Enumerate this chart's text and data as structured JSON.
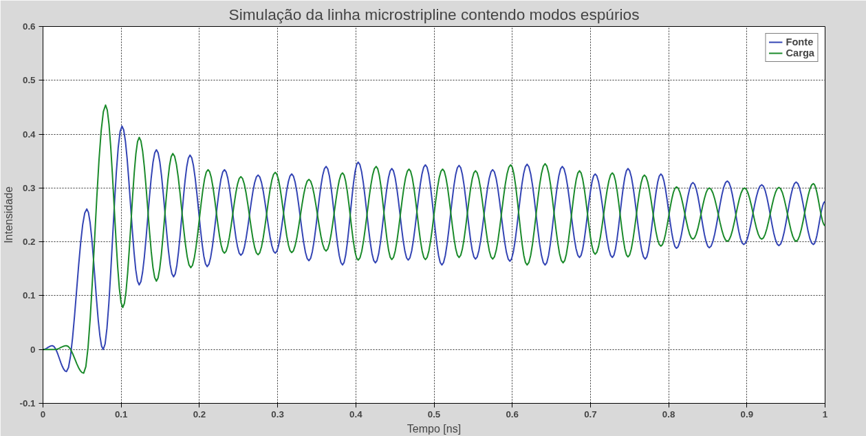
{
  "chart_data": {
    "type": "line",
    "title": "Simulação da linha microstripline contendo modos espúrios",
    "xlabel": "Tempo [ns]",
    "ylabel": "Intensidade",
    "xlim": [
      0,
      1
    ],
    "ylim": [
      -0.1,
      0.6
    ],
    "xticks": [
      0,
      0.1,
      0.2,
      0.3,
      0.4,
      0.5,
      0.6,
      0.7,
      0.8,
      0.9,
      1
    ],
    "yticks": [
      -0.1,
      0,
      0.1,
      0.2,
      0.3,
      0.4,
      0.5,
      0.6
    ],
    "grid": true,
    "legend": "top right",
    "line_style": "solid",
    "series": [
      {
        "name": "Fonte",
        "color": "#3344b4",
        "x": [
          0,
          0.012,
          0.03,
          0.056,
          0.077,
          0.101,
          0.123,
          0.145,
          0.167,
          0.188,
          0.21,
          0.232,
          0.253,
          0.275,
          0.297,
          0.318,
          0.34,
          0.362,
          0.383,
          0.403,
          0.425,
          0.446,
          0.467,
          0.489,
          0.51,
          0.532,
          0.553,
          0.575,
          0.597,
          0.619,
          0.642,
          0.664,
          0.686,
          0.706,
          0.728,
          0.748,
          0.77,
          0.79,
          0.81,
          0.831,
          0.852,
          0.875,
          0.896,
          0.919,
          0.941,
          0.963,
          0.985,
          1
        ],
        "values": [
          0,
          0.007,
          -0.041,
          0.261,
          0.0,
          0.415,
          0.12,
          0.371,
          0.135,
          0.361,
          0.154,
          0.334,
          0.175,
          0.324,
          0.179,
          0.326,
          0.165,
          0.34,
          0.157,
          0.348,
          0.161,
          0.336,
          0.166,
          0.343,
          0.157,
          0.342,
          0.168,
          0.334,
          0.164,
          0.344,
          0.157,
          0.34,
          0.171,
          0.326,
          0.171,
          0.336,
          0.168,
          0.326,
          0.188,
          0.31,
          0.189,
          0.313,
          0.195,
          0.306,
          0.193,
          0.311,
          0.195,
          0.275
        ]
      },
      {
        "name": "Carga",
        "color": "#1a8a2a",
        "x": [
          0,
          0.015,
          0.03,
          0.052,
          0.08,
          0.102,
          0.123,
          0.145,
          0.166,
          0.189,
          0.211,
          0.232,
          0.253,
          0.275,
          0.297,
          0.318,
          0.34,
          0.362,
          0.383,
          0.403,
          0.426,
          0.446,
          0.468,
          0.489,
          0.511,
          0.532,
          0.553,
          0.575,
          0.598,
          0.619,
          0.642,
          0.665,
          0.686,
          0.706,
          0.728,
          0.748,
          0.769,
          0.79,
          0.81,
          0.831,
          0.852,
          0.875,
          0.897,
          0.919,
          0.941,
          0.963,
          0.985,
          1
        ],
        "values": [
          0,
          0,
          0.007,
          -0.044,
          0.454,
          0.078,
          0.394,
          0.127,
          0.364,
          0.152,
          0.334,
          0.179,
          0.321,
          0.176,
          0.329,
          0.18,
          0.316,
          0.183,
          0.328,
          0.166,
          0.34,
          0.167,
          0.335,
          0.167,
          0.335,
          0.171,
          0.332,
          0.168,
          0.343,
          0.157,
          0.345,
          0.161,
          0.332,
          0.177,
          0.328,
          0.172,
          0.324,
          0.192,
          0.302,
          0.205,
          0.3,
          0.201,
          0.3,
          0.205,
          0.301,
          0.201,
          0.308,
          0.23
        ]
      }
    ]
  }
}
